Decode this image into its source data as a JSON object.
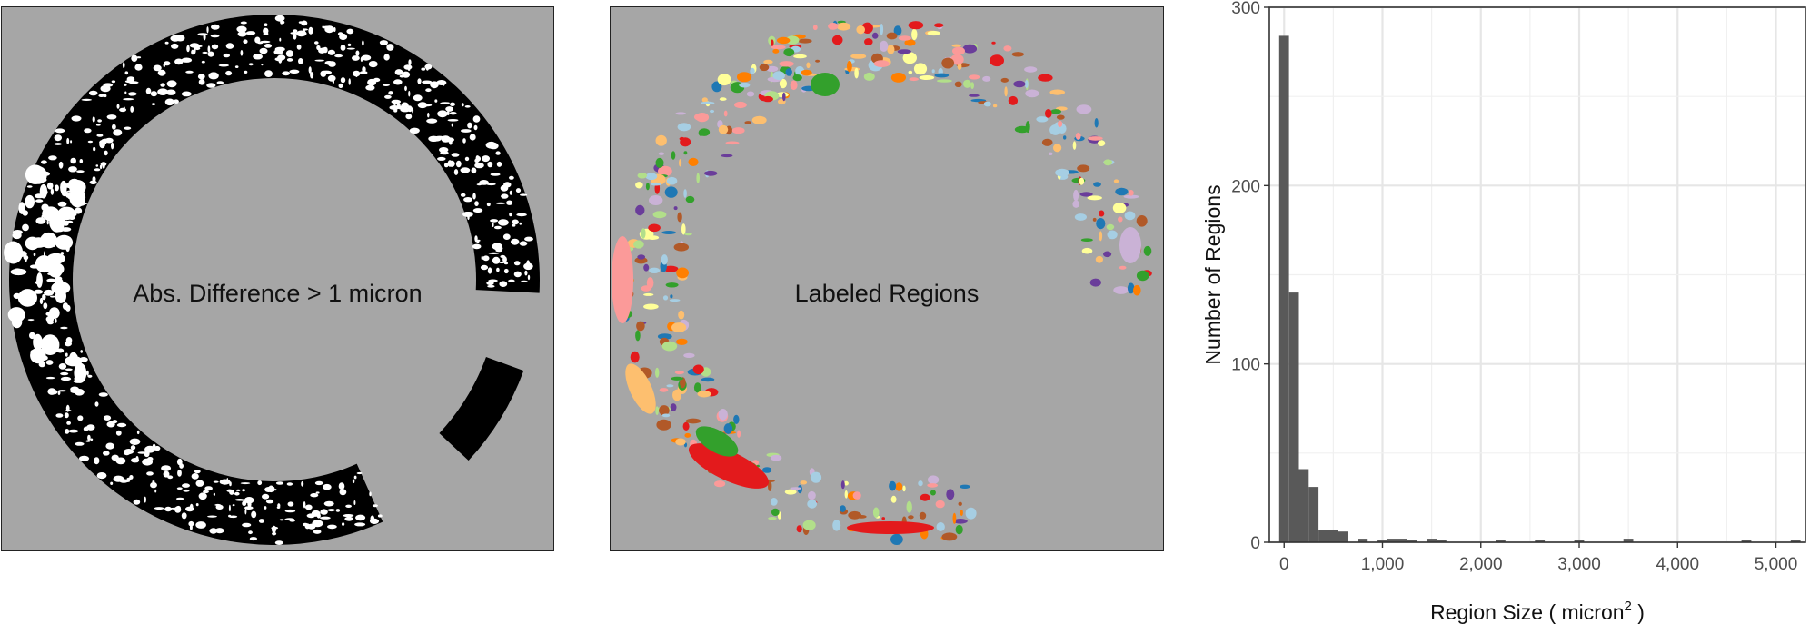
{
  "panels": {
    "left_label": "Abs. Difference > 1 micron",
    "middle_label": "Labeled Regions"
  },
  "colors": {
    "background_gray": "#a6a6a6",
    "bar_fill": "#595959",
    "region_palette": [
      "#a6cee3",
      "#1f78b4",
      "#b2df8a",
      "#33a02c",
      "#fb9a99",
      "#e31a1c",
      "#fdbf6f",
      "#ff7f00",
      "#cab2d6",
      "#6a3d9a",
      "#ffff99",
      "#b15928"
    ]
  },
  "chart_data": {
    "type": "bar",
    "xlabel": "Region Size ( micron",
    "xlabel_superscript": "2",
    "xlabel_suffix": " )",
    "ylabel": "Number of Regions",
    "xlim": [
      -150,
      5300
    ],
    "ylim": [
      0,
      300
    ],
    "x_ticks": [
      0,
      1000,
      2000,
      3000,
      4000,
      5000
    ],
    "x_tick_labels": [
      "0",
      "1,000",
      "2,000",
      "3,000",
      "4,000",
      "5,000"
    ],
    "y_ticks": [
      0,
      100,
      200,
      300
    ],
    "y_tick_labels": [
      "0",
      "100",
      "200",
      "300"
    ],
    "grid": true,
    "bin_width": 100,
    "bin_centers": [
      0,
      100,
      200,
      300,
      400,
      500,
      600,
      800,
      1000,
      1100,
      1200,
      1300,
      1500,
      1600,
      2200,
      2600,
      3000,
      3500,
      4700,
      5200
    ],
    "values": [
      284,
      140,
      41,
      31,
      7,
      7,
      6,
      2,
      1,
      2,
      2,
      1,
      2,
      1,
      1,
      1,
      1,
      2,
      1,
      1
    ]
  }
}
